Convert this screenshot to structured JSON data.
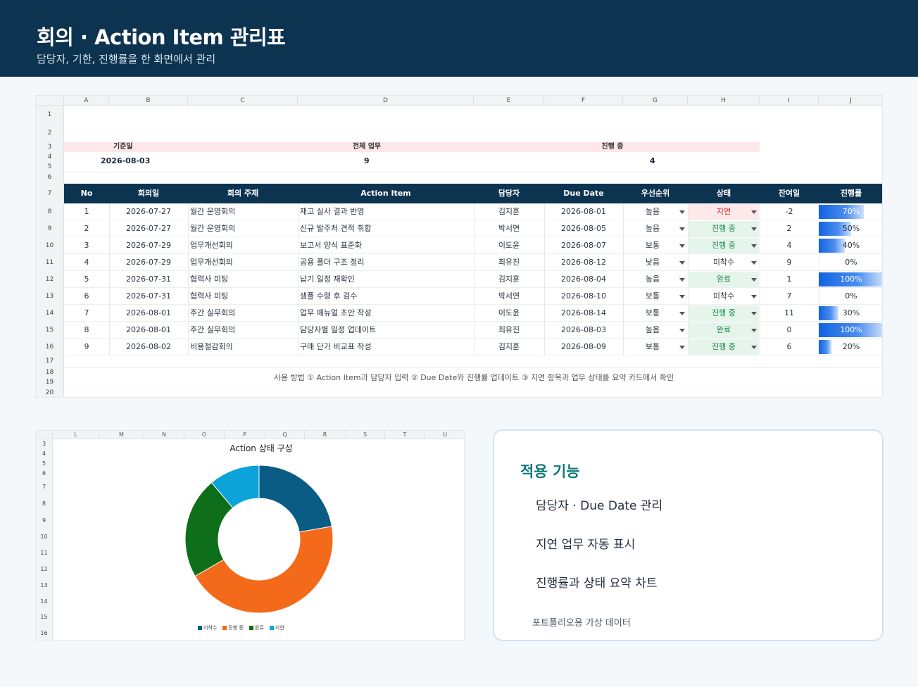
{
  "header": {
    "title": "회의 · Action Item 관리표",
    "subtitle": "담당자, 기한, 진행률을 한 화면에서 관리"
  },
  "sheet": {
    "columns": [
      "A",
      "B",
      "C",
      "D",
      "E",
      "F",
      "G",
      "H",
      "I",
      "J"
    ],
    "rows": [
      "1",
      "2",
      "3",
      "4",
      "5",
      "6",
      "7",
      "8",
      "9",
      "10",
      "11",
      "12",
      "13",
      "14",
      "15",
      "16",
      "17",
      "18",
      "19",
      "20"
    ],
    "summary": {
      "base_date_label": "기준일",
      "base_date_value": "2026-08-03",
      "total_label": "전체 업무",
      "total_value": "9",
      "inprogress_label": "진행 중",
      "inprogress_value": "4"
    },
    "table_headers": [
      "No",
      "회의일",
      "회의 주제",
      "Action Item",
      "담당자",
      "Due Date",
      "우선순위",
      "상태",
      "잔여일",
      "진행률"
    ],
    "items": [
      {
        "no": "1",
        "date": "2026-07-27",
        "topic": "월간 운영회의",
        "action": "재고 실사 결과 반영",
        "owner": "김지훈",
        "due": "2026-08-01",
        "priority": "높음",
        "status": "지연",
        "remain": "-2",
        "progress": 0.7,
        "progress_label": "70%"
      },
      {
        "no": "2",
        "date": "2026-07-27",
        "topic": "월간 운영회의",
        "action": "신규 발주처 견적 취합",
        "owner": "박서연",
        "due": "2026-08-05",
        "priority": "높음",
        "status": "진행 중",
        "remain": "2",
        "progress": 0.5,
        "progress_label": "50%"
      },
      {
        "no": "3",
        "date": "2026-07-29",
        "topic": "업무개선회의",
        "action": "보고서 양식 표준화",
        "owner": "이도윤",
        "due": "2026-08-07",
        "priority": "보통",
        "status": "진행 중",
        "remain": "4",
        "progress": 0.4,
        "progress_label": "40%"
      },
      {
        "no": "4",
        "date": "2026-07-29",
        "topic": "업무개선회의",
        "action": "공용 폴더 구조 정리",
        "owner": "최유진",
        "due": "2026-08-12",
        "priority": "낮음",
        "status": "미착수",
        "remain": "9",
        "progress": 0.0,
        "progress_label": "0%"
      },
      {
        "no": "5",
        "date": "2026-07-31",
        "topic": "협력사 미팅",
        "action": "납기 일정 재확인",
        "owner": "김지훈",
        "due": "2026-08-04",
        "priority": "높음",
        "status": "완료",
        "remain": "1",
        "progress": 1.0,
        "progress_label": "100%"
      },
      {
        "no": "6",
        "date": "2026-07-31",
        "topic": "협력사 미팅",
        "action": "샘플 수령 후 검수",
        "owner": "박서연",
        "due": "2026-08-10",
        "priority": "보통",
        "status": "미착수",
        "remain": "7",
        "progress": 0.0,
        "progress_label": "0%"
      },
      {
        "no": "7",
        "date": "2026-08-01",
        "topic": "주간 실무회의",
        "action": "업무 매뉴얼 초안 작성",
        "owner": "이도윤",
        "due": "2026-08-14",
        "priority": "보통",
        "status": "진행 중",
        "remain": "11",
        "progress": 0.3,
        "progress_label": "30%"
      },
      {
        "no": "8",
        "date": "2026-08-01",
        "topic": "주간 실무회의",
        "action": "담당자별 일정 업데이트",
        "owner": "최유진",
        "due": "2026-08-03",
        "priority": "높음",
        "status": "완료",
        "remain": "0",
        "progress": 1.0,
        "progress_label": "100%"
      },
      {
        "no": "9",
        "date": "2026-08-02",
        "topic": "비용절감회의",
        "action": "구매 단가 비교표 작성",
        "owner": "김지훈",
        "due": "2026-08-09",
        "priority": "보통",
        "status": "진행 중",
        "remain": "6",
        "progress": 0.2,
        "progress_label": "20%"
      }
    ],
    "note": "사용 방법 ① Action Item과 담당자 입력   ② Due Date와 진행률 업데이트   ③ 지연 항목과 업무 상태를 요약 카드에서 확인"
  },
  "chart_sheet": {
    "columns": [
      "L",
      "M",
      "N",
      "O",
      "P",
      "Q",
      "R",
      "S",
      "T",
      "U"
    ],
    "rows": [
      "3",
      "4",
      "5",
      "6",
      "7",
      "8",
      "9",
      "10",
      "11",
      "12",
      "13",
      "14",
      "15",
      "16"
    ]
  },
  "chart_data": {
    "type": "pie",
    "title": "Action 상태 구성",
    "categories": [
      "미착수",
      "진행 중",
      "완료",
      "지연"
    ],
    "values": [
      2,
      4,
      2,
      1
    ],
    "colors": [
      "#0b5c84",
      "#f46a1b",
      "#0e6e19",
      "#0ca3da"
    ],
    "donut": true,
    "legend": "bottom"
  },
  "card": {
    "title": "적용 기능",
    "features": [
      "담당자 · Due Date 관리",
      "지연 업무 자동 표시",
      "진행률과 상태 요약 차트"
    ],
    "footer": "포트폴리오용 가상 데이터"
  }
}
